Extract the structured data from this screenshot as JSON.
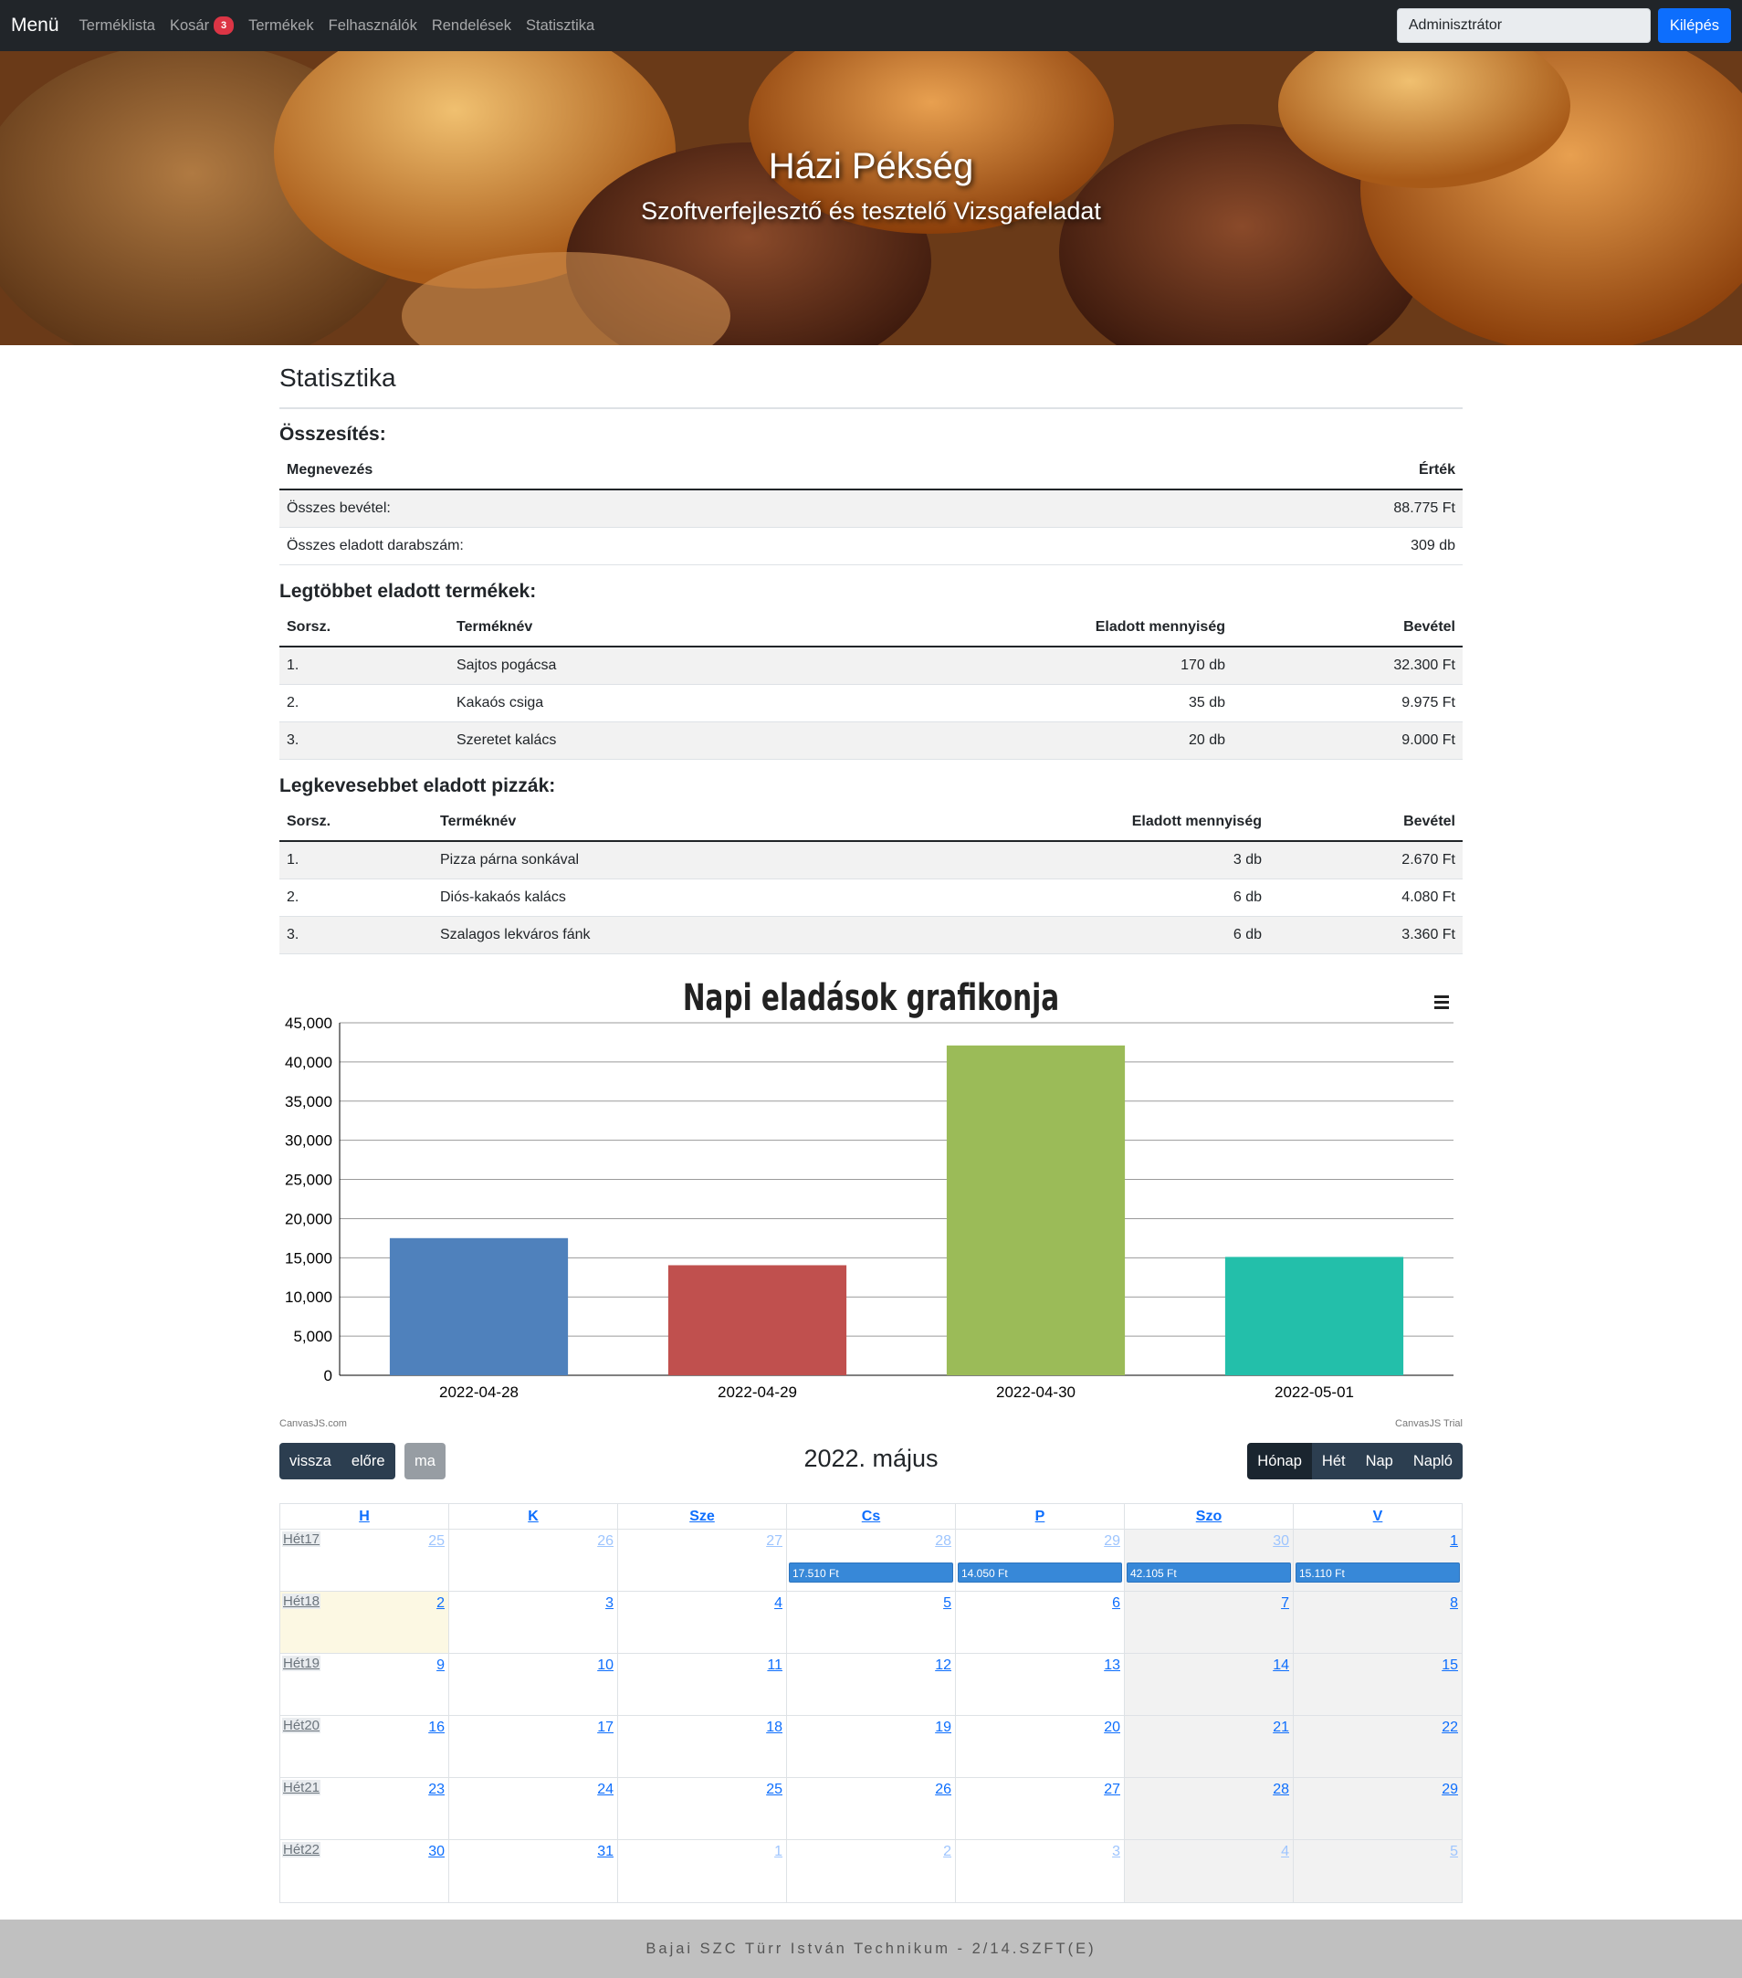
{
  "navbar": {
    "brand": "Menü",
    "items": [
      {
        "label": "Terméklista"
      },
      {
        "label": "Kosár",
        "badge": "3"
      },
      {
        "label": "Termékek"
      },
      {
        "label": "Felhasználók"
      },
      {
        "label": "Rendelések"
      },
      {
        "label": "Statisztika"
      }
    ],
    "user_value": "Adminisztrátor",
    "logout_label": "Kilépés"
  },
  "hero": {
    "title": "Házi Pékség",
    "subtitle": "Szoftverfejlesztő és tesztelő Vizsgafeladat"
  },
  "page": {
    "title": "Statisztika"
  },
  "summary": {
    "heading": "Összesítés:",
    "headers": {
      "name": "Megnevezés",
      "value": "Érték"
    },
    "rows": [
      {
        "name": "Összes bevétel:",
        "value": "88.775 Ft"
      },
      {
        "name": "Összes eladott darabszám:",
        "value": "309 db"
      }
    ]
  },
  "top_products": {
    "heading": "Legtöbbet eladott termékek:",
    "headers": {
      "rank": "Sorsz.",
      "name": "Terméknév",
      "qty": "Eladott mennyiség",
      "revenue": "Bevétel"
    },
    "rows": [
      {
        "rank": "1.",
        "name": "Sajtos pogácsa",
        "qty": "170 db",
        "revenue": "32.300 Ft"
      },
      {
        "rank": "2.",
        "name": "Kakaós csiga",
        "qty": "35 db",
        "revenue": "9.975 Ft"
      },
      {
        "rank": "3.",
        "name": "Szeretet kalács",
        "qty": "20 db",
        "revenue": "9.000 Ft"
      }
    ]
  },
  "least_products": {
    "heading": "Legkevesebbet eladott pizzák:",
    "headers": {
      "rank": "Sorsz.",
      "name": "Terméknév",
      "qty": "Eladott mennyiség",
      "revenue": "Bevétel"
    },
    "rows": [
      {
        "rank": "1.",
        "name": "Pizza párna sonkával",
        "qty": "3 db",
        "revenue": "2.670 Ft"
      },
      {
        "rank": "2.",
        "name": "Diós-kakaós kalács",
        "qty": "6 db",
        "revenue": "4.080 Ft"
      },
      {
        "rank": "3.",
        "name": "Szalagos lekváros fánk",
        "qty": "6 db",
        "revenue": "3.360 Ft"
      }
    ]
  },
  "chart_data": {
    "type": "bar",
    "title": "Napi eladások grafikonja",
    "categories": [
      "2022-04-28",
      "2022-04-29",
      "2022-04-30",
      "2022-05-01"
    ],
    "values": [
      17510,
      14050,
      42105,
      15110
    ],
    "colors": [
      "#4f81bc",
      "#c0504e",
      "#9bbb58",
      "#23bfaa"
    ],
    "ylim": [
      0,
      45000
    ],
    "yticks": [
      "0",
      "5,000",
      "10,000",
      "15,000",
      "20,000",
      "25,000",
      "30,000",
      "35,000",
      "40,000",
      "45,000"
    ],
    "xlabel": "",
    "ylabel": "",
    "credit_left": "CanvasJS.com",
    "credit_right": "CanvasJS Trial"
  },
  "calendar": {
    "title": "2022. május",
    "back_label": "vissza",
    "forward_label": "előre",
    "today_label": "ma",
    "views": [
      {
        "label": "Hónap",
        "active": true
      },
      {
        "label": "Hét"
      },
      {
        "label": "Nap"
      },
      {
        "label": "Napló"
      }
    ],
    "day_headers": [
      "H",
      "K",
      "Sze",
      "Cs",
      "P",
      "Szo",
      "V"
    ],
    "weeks": [
      {
        "label": "Hét17",
        "days": [
          {
            "num": "25",
            "other": true
          },
          {
            "num": "26",
            "other": true
          },
          {
            "num": "27",
            "other": true
          },
          {
            "num": "28",
            "other": true,
            "event": "17.510 Ft"
          },
          {
            "num": "29",
            "other": true,
            "event": "14.050 Ft"
          },
          {
            "num": "30",
            "other": true,
            "event": "42.105 Ft"
          },
          {
            "num": "1",
            "event": "15.110 Ft"
          }
        ]
      },
      {
        "label": "Hét18",
        "days": [
          {
            "num": "2",
            "today": true
          },
          {
            "num": "3"
          },
          {
            "num": "4"
          },
          {
            "num": "5"
          },
          {
            "num": "6"
          },
          {
            "num": "7"
          },
          {
            "num": "8"
          }
        ]
      },
      {
        "label": "Hét19",
        "days": [
          {
            "num": "9"
          },
          {
            "num": "10"
          },
          {
            "num": "11"
          },
          {
            "num": "12"
          },
          {
            "num": "13"
          },
          {
            "num": "14"
          },
          {
            "num": "15"
          }
        ]
      },
      {
        "label": "Hét20",
        "days": [
          {
            "num": "16"
          },
          {
            "num": "17"
          },
          {
            "num": "18"
          },
          {
            "num": "19"
          },
          {
            "num": "20"
          },
          {
            "num": "21"
          },
          {
            "num": "22"
          }
        ]
      },
      {
        "label": "Hét21",
        "days": [
          {
            "num": "23"
          },
          {
            "num": "24"
          },
          {
            "num": "25"
          },
          {
            "num": "26"
          },
          {
            "num": "27"
          },
          {
            "num": "28"
          },
          {
            "num": "29"
          }
        ]
      },
      {
        "label": "Hét22",
        "days": [
          {
            "num": "30"
          },
          {
            "num": "31"
          },
          {
            "num": "1",
            "other": true
          },
          {
            "num": "2",
            "other": true
          },
          {
            "num": "3",
            "other": true
          },
          {
            "num": "4",
            "other": true
          },
          {
            "num": "5",
            "other": true
          }
        ]
      }
    ]
  },
  "footer": {
    "text": "Bajai SZC Türr István Technikum - 2/14.SZFT(E)"
  }
}
